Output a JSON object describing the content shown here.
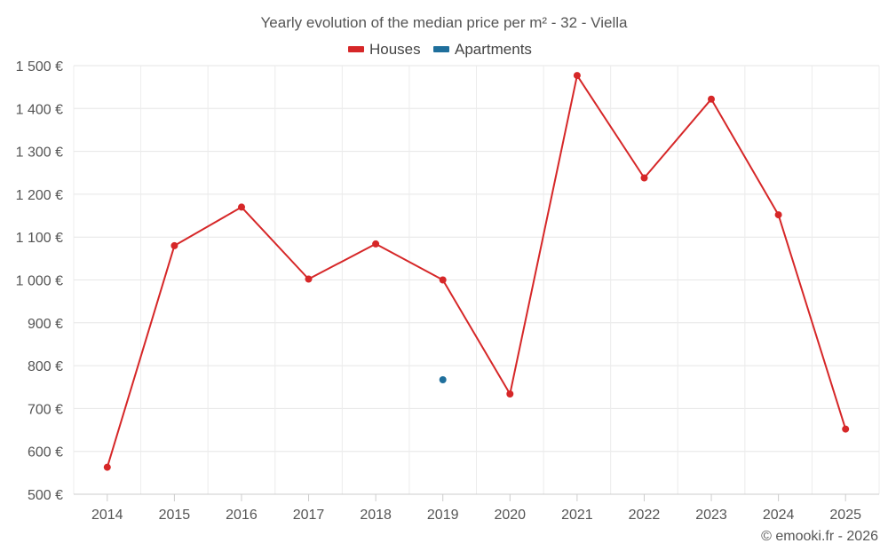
{
  "chart_data": {
    "type": "line",
    "title": "Yearly evolution of the median price per m² - 32 - Viella",
    "xlabel": "",
    "ylabel": "",
    "ylim": [
      500,
      1500
    ],
    "y_ticks": [
      500,
      600,
      700,
      800,
      900,
      1000,
      1100,
      1200,
      1300,
      1400,
      1500
    ],
    "y_tick_labels": [
      "500 €",
      "600 €",
      "700 €",
      "800 €",
      "900 €",
      "1 000 €",
      "1 100 €",
      "1 200 €",
      "1 300 €",
      "1 400 €",
      "1 500 €"
    ],
    "categories": [
      "2014",
      "2015",
      "2016",
      "2017",
      "2018",
      "2019",
      "2020",
      "2021",
      "2022",
      "2023",
      "2024",
      "2025"
    ],
    "grid": true,
    "legend_position": "top-center",
    "series": [
      {
        "name": "Houses",
        "color": "#d62728",
        "values": [
          563,
          1080,
          1170,
          1002,
          1084,
          1000,
          734,
          1477,
          1238,
          1422,
          1152,
          652
        ]
      },
      {
        "name": "Apartments",
        "color": "#1f6f9c",
        "values": [
          null,
          null,
          null,
          null,
          null,
          767,
          null,
          null,
          null,
          null,
          null,
          null
        ]
      }
    ]
  },
  "credit": "© emooki.fr - 2026"
}
